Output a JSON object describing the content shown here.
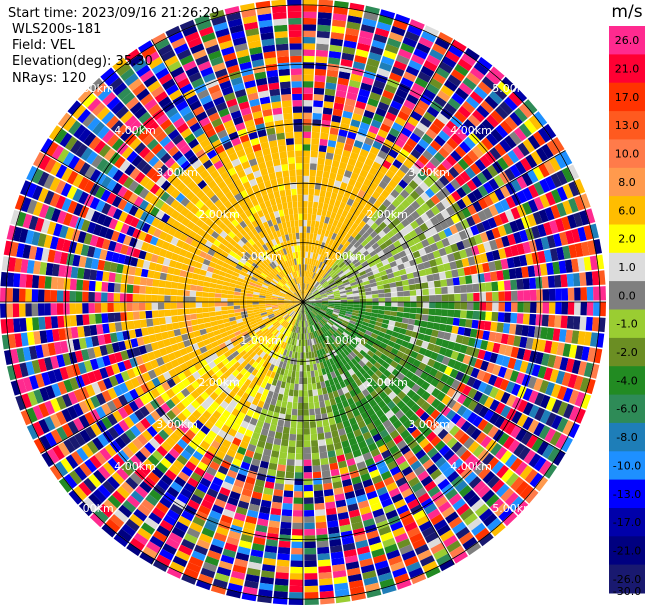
{
  "info": {
    "start_time": "Start time: 2023/09/16 21:26:29",
    "instrument": "WLS200s-181",
    "field": "Field: VEL",
    "elevation": "Elevation(deg): 35.30",
    "nrays": "NRays: 120"
  },
  "chart_data": {
    "type": "heatmap",
    "projection": "polar-ppi",
    "title": "",
    "range_unit": "km",
    "range_rings": [
      {
        "label": "1.00km",
        "km": 1.0
      },
      {
        "label": "2.00km",
        "km": 2.0
      },
      {
        "label": "3.00km",
        "km": 3.0
      },
      {
        "label": "4.00km",
        "km": 4.0
      },
      {
        "label": "5.00km",
        "km": 5.0
      }
    ],
    "max_range_km": 5.1,
    "n_rays": 120,
    "n_gates": 48,
    "colorbar": {
      "label": "m/s",
      "ticks": [
        "26.0",
        "21.0",
        "17.0",
        "13.0",
        "10.0",
        "8.0",
        "6.0",
        "2.0",
        "1.0",
        "0.0",
        "-1.0",
        "-2.0",
        "-4.0",
        "-6.0",
        "-8.0",
        "-10.0",
        "-13.0",
        "-17.0",
        "-21.0",
        "-26.0",
        "-30.0"
      ],
      "colors": [
        "#ff2a8f",
        "#ff0033",
        "#ff3300",
        "#ff5a1f",
        "#ff7b4a",
        "#ff9a4d",
        "#ffbd00",
        "#ffff00",
        "#dcdcdc",
        "#7f7f7f",
        "#9acd32",
        "#6b8e23",
        "#228b22",
        "#2e8b57",
        "#1e7eb8",
        "#1e90ff",
        "#0000ff",
        "#0000aa",
        "#000080",
        "#191970"
      ]
    },
    "coherent_region_km": 3.0,
    "sectors": [
      {
        "from_deg": 0,
        "to_deg": 40,
        "dominant_ms": 4.0
      },
      {
        "from_deg": 40,
        "to_deg": 90,
        "dominant_ms": -1.0
      },
      {
        "from_deg": 90,
        "to_deg": 165,
        "dominant_ms": -4.5
      },
      {
        "from_deg": 165,
        "to_deg": 200,
        "dominant_ms": -1.5
      },
      {
        "from_deg": 200,
        "to_deg": 240,
        "dominant_ms": 2.0
      },
      {
        "from_deg": 240,
        "to_deg": 300,
        "dominant_ms": 5.0
      },
      {
        "from_deg": 300,
        "to_deg": 360,
        "dominant_ms": 3.0
      }
    ]
  }
}
